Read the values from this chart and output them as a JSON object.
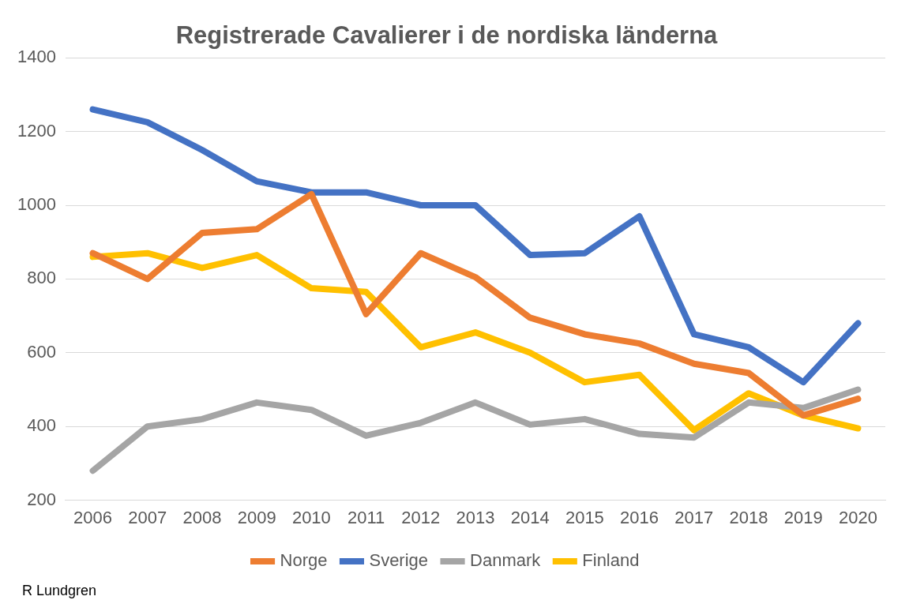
{
  "chart_data": {
    "type": "line",
    "title": "Registrerade Cavalierer i de nordiska länderna",
    "categories": [
      "2006",
      "2007",
      "2008",
      "2009",
      "2010",
      "2011",
      "2012",
      "2013",
      "2014",
      "2015",
      "2016",
      "2017",
      "2018",
      "2019",
      "2020"
    ],
    "series": [
      {
        "name": "Norge",
        "color": "#ed7d31",
        "values": [
          870,
          800,
          925,
          935,
          1030,
          705,
          870,
          805,
          695,
          650,
          625,
          570,
          545,
          430,
          475
        ]
      },
      {
        "name": "Sverige",
        "color": "#4472c4",
        "values": [
          1260,
          1225,
          1150,
          1065,
          1035,
          1035,
          1000,
          1000,
          865,
          870,
          970,
          650,
          615,
          520,
          680
        ]
      },
      {
        "name": "Danmark",
        "color": "#a5a5a5",
        "values": [
          280,
          400,
          420,
          465,
          445,
          375,
          410,
          465,
          405,
          420,
          380,
          370,
          465,
          450,
          500
        ]
      },
      {
        "name": "Finland",
        "color": "#ffc000",
        "values": [
          860,
          870,
          830,
          865,
          775,
          765,
          615,
          655,
          600,
          520,
          540,
          390,
          490,
          430,
          395
        ]
      }
    ],
    "ylim": [
      200,
      1400
    ],
    "yticks": [
      200,
      400,
      600,
      800,
      1000,
      1200,
      1400
    ],
    "grid": "y",
    "legend": "bottom",
    "marker": "none",
    "line_style": "solid",
    "annotations": [
      "R Lundgren"
    ]
  }
}
